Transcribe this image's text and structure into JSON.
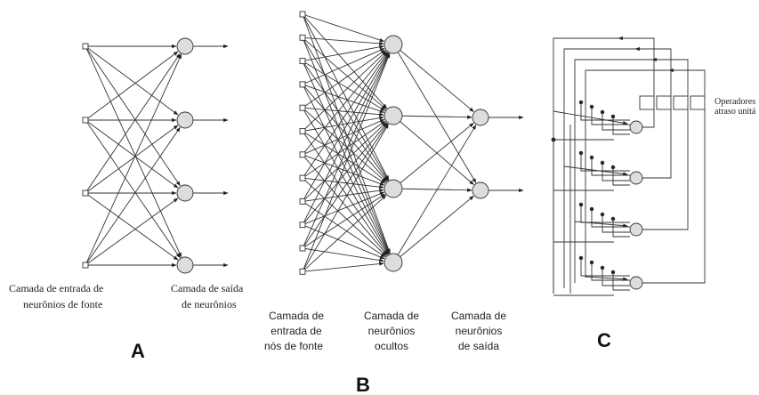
{
  "panels": [
    {
      "label": "A",
      "captions": [
        {
          "lines": [
            "Camada de entrada de",
            "neurônios de fonte"
          ]
        },
        {
          "lines": [
            "Camada de saída",
            "de neurônios"
          ]
        }
      ]
    },
    {
      "label": "B",
      "captions": [
        {
          "lines": [
            "Camada de",
            "entrada de",
            "nós de fonte"
          ]
        },
        {
          "lines": [
            "Camada de",
            "neurônios",
            "ocultos"
          ]
        },
        {
          "lines": [
            "Camada de",
            "neurônios",
            "de saída"
          ]
        }
      ]
    },
    {
      "label": "C",
      "captions": [
        {
          "lines": [
            "Operadores",
            "atraso unitá"
          ]
        }
      ]
    }
  ]
}
